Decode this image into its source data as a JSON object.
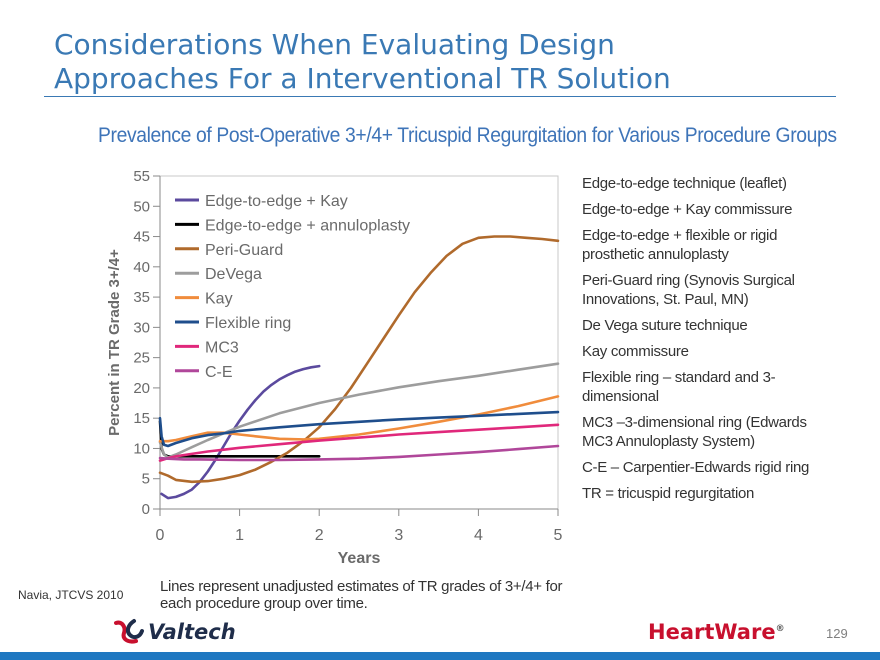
{
  "slide": {
    "title_line1": "Considerations When Evaluating Design",
    "title_line2": "Approaches For a Interventional TR Solution",
    "source": "Navia, JTCVS 2010",
    "page_number": "129",
    "logo_left": "Valtech",
    "logo_right": "HeartWare",
    "logo_right_mark": "®"
  },
  "notes": [
    "Edge-to-edge technique (leaflet)",
    "Edge-to-edge + Kay commissure",
    "Edge-to-edge + flexible or rigid prosthetic annuloplasty",
    "Peri-Guard ring (Synovis Surgical Innovations, St. Paul, MN)",
    "De Vega suture technique",
    "Kay commissure",
    "Flexible ring – standard and 3-dimensional",
    "MC3 –3-dimensional ring (Edwards MC3 Annuloplasty System)",
    "C-E – Carpentier-Edwards rigid ring",
    "TR = tricuspid regurgitation"
  ],
  "caption": "Lines represent unadjusted estimates of TR grades of 3+/4+ for each procedure group over time.",
  "chart_data": {
    "type": "line",
    "title": "Prevalence of Post-Operative 3+/4+ Tricuspid Regurgitation for Various Procedure Groups",
    "xlabel": "Years",
    "ylabel": "Percent in TR Grade 3+/4+",
    "xlim": [
      0,
      5
    ],
    "ylim": [
      0,
      55
    ],
    "xticks": [
      0,
      1,
      2,
      3,
      4,
      5
    ],
    "yticks": [
      0,
      5,
      10,
      15,
      20,
      25,
      30,
      35,
      40,
      45,
      50,
      55
    ],
    "legend_position": "top-left",
    "series": [
      {
        "name": "Edge-to-edge + Kay",
        "color": "#5b4a9e",
        "x": [
          0.02,
          0.1,
          0.2,
          0.3,
          0.4,
          0.5,
          0.6,
          0.7,
          0.8,
          0.9,
          1.0,
          1.1,
          1.2,
          1.3,
          1.4,
          1.5,
          1.6,
          1.7,
          1.8,
          1.9,
          2.0
        ],
        "y": [
          2.5,
          1.8,
          2.0,
          2.5,
          3.2,
          4.5,
          6.2,
          8.2,
          10.4,
          12.6,
          14.6,
          16.4,
          18.0,
          19.4,
          20.5,
          21.4,
          22.1,
          22.7,
          23.1,
          23.4,
          23.6
        ]
      },
      {
        "name": "Edge-to-edge + annuloplasty",
        "color": "#000000",
        "x": [
          0.0,
          0.02,
          0.05,
          0.1,
          0.2,
          0.4,
          1.0,
          1.5,
          2.0
        ],
        "y": [
          14.5,
          10.0,
          9.0,
          8.7,
          8.7,
          8.7,
          8.7,
          8.7,
          8.7
        ]
      },
      {
        "name": "Peri-Guard",
        "color": "#b06a2c",
        "x": [
          0.0,
          0.1,
          0.2,
          0.4,
          0.6,
          0.8,
          1.0,
          1.2,
          1.4,
          1.6,
          1.8,
          2.0,
          2.2,
          2.4,
          2.6,
          2.8,
          3.0,
          3.2,
          3.4,
          3.6,
          3.8,
          4.0,
          4.2,
          4.4,
          4.6,
          4.8,
          5.0
        ],
        "y": [
          6.0,
          5.5,
          4.8,
          4.5,
          4.6,
          5.0,
          5.6,
          6.5,
          7.8,
          9.3,
          11.2,
          13.5,
          16.5,
          20.0,
          24.0,
          28.0,
          32.0,
          35.8,
          39.0,
          41.8,
          43.8,
          44.8,
          45.0,
          45.0,
          44.8,
          44.6,
          44.3
        ]
      },
      {
        "name": "DeVega",
        "color": "#9d9d9d",
        "x": [
          0.0,
          0.05,
          0.1,
          0.2,
          0.4,
          0.6,
          0.8,
          1.0,
          1.5,
          2.0,
          2.5,
          3.0,
          3.5,
          4.0,
          4.5,
          5.0
        ],
        "y": [
          11.0,
          9.0,
          8.5,
          9.0,
          10.2,
          11.4,
          12.5,
          13.6,
          15.8,
          17.5,
          18.9,
          20.1,
          21.1,
          22.0,
          23.0,
          24.0
        ]
      },
      {
        "name": "Kay",
        "color": "#f08c3c",
        "x": [
          0.0,
          0.1,
          0.2,
          0.4,
          0.6,
          0.8,
          1.0,
          1.2,
          1.5,
          1.8,
          2.0,
          2.5,
          3.0,
          3.5,
          4.0,
          4.5,
          5.0
        ],
        "y": [
          11.2,
          11.2,
          11.4,
          12.0,
          12.6,
          12.6,
          12.3,
          12.0,
          11.6,
          11.5,
          11.6,
          12.3,
          13.3,
          14.4,
          15.6,
          17.0,
          18.6
        ]
      },
      {
        "name": "Flexible ring",
        "color": "#1f4e8c",
        "x": [
          0.0,
          0.02,
          0.05,
          0.1,
          0.2,
          0.4,
          0.6,
          0.8,
          1.0,
          1.5,
          2.0,
          2.5,
          3.0,
          3.5,
          4.0,
          4.5,
          5.0
        ],
        "y": [
          15.0,
          12.0,
          10.6,
          10.4,
          10.9,
          11.7,
          12.2,
          12.5,
          12.9,
          13.5,
          14.0,
          14.4,
          14.8,
          15.1,
          15.4,
          15.7,
          16.0
        ]
      },
      {
        "name": "MC3",
        "color": "#e0287b",
        "x": [
          0.0,
          0.05,
          0.1,
          0.2,
          0.4,
          0.6,
          0.8,
          1.0,
          1.5,
          2.0,
          2.5,
          3.0,
          3.5,
          4.0,
          4.5,
          5.0
        ],
        "y": [
          8.0,
          8.2,
          8.4,
          8.7,
          9.1,
          9.5,
          9.8,
          10.1,
          10.7,
          11.3,
          11.8,
          12.3,
          12.7,
          13.1,
          13.5,
          13.9
        ]
      },
      {
        "name": "C-E",
        "color": "#b0479a",
        "x": [
          0.0,
          0.1,
          0.3,
          0.5,
          1.0,
          1.5,
          2.0,
          2.5,
          3.0,
          3.5,
          4.0,
          4.5,
          5.0
        ],
        "y": [
          8.4,
          8.3,
          8.2,
          8.2,
          8.1,
          8.1,
          8.2,
          8.3,
          8.6,
          9.0,
          9.4,
          9.9,
          10.4
        ]
      }
    ]
  }
}
